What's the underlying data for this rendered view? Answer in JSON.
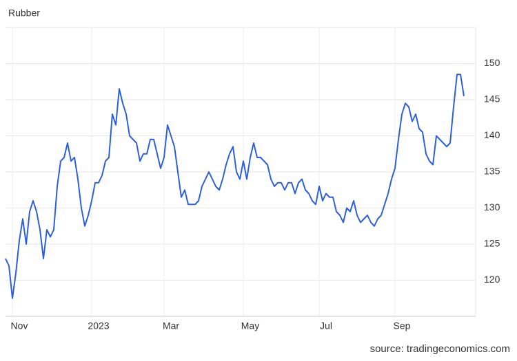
{
  "chart_data": {
    "type": "line",
    "title": "Rubber",
    "source": "source: tradingeconomics.com",
    "categories": [
      null,
      null,
      "Nov",
      null,
      null,
      null,
      null,
      null,
      null,
      null,
      null,
      null,
      null,
      null,
      null,
      null,
      null,
      null,
      null,
      null,
      null,
      null,
      null,
      null,
      null,
      "2023",
      null,
      null,
      null,
      null,
      null,
      null,
      null,
      null,
      null,
      null,
      null,
      null,
      null,
      null,
      null,
      null,
      null,
      null,
      null,
      null,
      "Mar",
      null,
      null,
      null,
      null,
      null,
      null,
      null,
      null,
      null,
      null,
      null,
      null,
      null,
      null,
      null,
      null,
      null,
      null,
      null,
      null,
      null,
      null,
      "May",
      null,
      null,
      null,
      null,
      null,
      null,
      null,
      null,
      null,
      null,
      null,
      null,
      null,
      null,
      null,
      null,
      null,
      null,
      null,
      null,
      null,
      "Jul",
      null,
      null,
      null,
      null,
      null,
      null,
      null,
      null,
      null,
      null,
      null,
      null,
      null,
      null,
      null,
      null,
      null,
      null,
      null,
      null,
      null,
      "Sep",
      null,
      null,
      null,
      null,
      null,
      null,
      null,
      null,
      null,
      null,
      null,
      null,
      null,
      null,
      null,
      null,
      null,
      null,
      null,
      null
    ],
    "series": [
      {
        "name": "Rubber",
        "color": "#2c5fdc",
        "values": [
          123,
          122,
          117.5,
          121,
          125.5,
          128.5,
          125,
          129.5,
          131,
          129.5,
          127,
          123,
          127,
          126,
          127,
          133,
          136.5,
          137,
          139,
          136.5,
          137,
          134,
          130,
          127.5,
          129,
          131,
          133.5,
          133.5,
          134.5,
          136.5,
          137,
          143,
          141.5,
          146.5,
          144.5,
          143,
          140,
          139.5,
          139,
          136.5,
          137.5,
          137.5,
          139.5,
          139.5,
          137.5,
          135.5,
          137,
          141.5,
          140,
          138.5,
          135,
          131.5,
          132.5,
          130.5,
          130.5,
          130.5,
          131,
          133,
          134,
          135,
          134,
          133,
          132.5,
          134,
          136,
          137.5,
          138.5,
          135,
          134,
          136.5,
          134,
          137,
          139,
          137,
          137,
          136.5,
          136,
          134,
          133,
          133.5,
          133.5,
          132.5,
          133.5,
          133.5,
          132,
          133.5,
          134,
          132.5,
          132,
          131,
          130.5,
          133,
          131,
          132,
          131.5,
          131.5,
          129.5,
          129,
          128,
          130,
          129.5,
          131,
          129,
          128,
          128.5,
          129,
          128,
          127.5,
          128.5,
          129,
          130.5,
          132,
          134,
          135.5,
          139.5,
          143,
          144.5,
          144,
          142,
          143,
          141,
          140.5,
          137.5,
          136.5,
          136,
          140,
          139.5,
          139,
          138.5,
          139,
          144,
          148.5,
          148.5,
          145.5
        ]
      }
    ],
    "ylim": [
      115,
      155
    ],
    "yticks": [
      120,
      125,
      130,
      135,
      140,
      145,
      150
    ],
    "grid": true
  }
}
